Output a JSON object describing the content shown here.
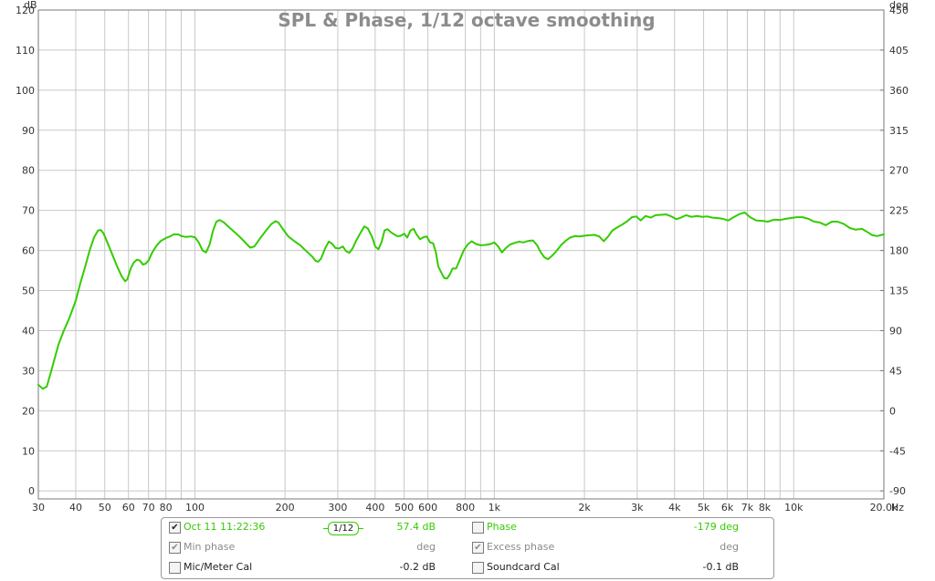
{
  "chart_data": {
    "type": "line",
    "title": "SPL & Phase, 1/12 octave smoothing",
    "left_unit": "dB",
    "right_unit": "deg",
    "x_unit": "Hz",
    "x_scale": "log",
    "xlim": [
      30,
      20000
    ],
    "ylim": [
      -2,
      120
    ],
    "y2lim": [
      -99,
      450
    ],
    "grid": true,
    "x_ticks": [
      {
        "value": 30,
        "label": "30"
      },
      {
        "value": 40,
        "label": "40"
      },
      {
        "value": 50,
        "label": "50"
      },
      {
        "value": 60,
        "label": "60"
      },
      {
        "value": 70,
        "label": "70"
      },
      {
        "value": 80,
        "label": "80"
      },
      {
        "value": 100,
        "label": "100"
      },
      {
        "value": 200,
        "label": "200"
      },
      {
        "value": 300,
        "label": "300"
      },
      {
        "value": 400,
        "label": "400"
      },
      {
        "value": 500,
        "label": "500"
      },
      {
        "value": 600,
        "label": "600"
      },
      {
        "value": 800,
        "label": "800"
      },
      {
        "value": 1000,
        "label": "1k"
      },
      {
        "value": 2000,
        "label": "2k"
      },
      {
        "value": 3000,
        "label": "3k"
      },
      {
        "value": 4000,
        "label": "4k"
      },
      {
        "value": 5000,
        "label": "5k"
      },
      {
        "value": 6000,
        "label": "6k"
      },
      {
        "value": 7000,
        "label": "7k"
      },
      {
        "value": 8000,
        "label": "8k"
      },
      {
        "value": 10000,
        "label": "10k"
      },
      {
        "value": 20000,
        "label": "20.0k"
      }
    ],
    "x_minor": [
      90,
      900,
      9000
    ],
    "y_ticks": [
      0,
      10,
      20,
      30,
      40,
      50,
      60,
      70,
      80,
      90,
      100,
      110,
      120
    ],
    "y2_ticks": [
      -90,
      -45,
      0,
      45,
      90,
      135,
      180,
      225,
      270,
      315,
      360,
      405,
      450
    ],
    "series": [
      {
        "name": "Oct 11 11:22:36",
        "color": "#33cc00",
        "points": [
          [
            30,
            26.5
          ],
          [
            31,
            25.5
          ],
          [
            32,
            26
          ],
          [
            33,
            29.5
          ],
          [
            34,
            33
          ],
          [
            35,
            36.5
          ],
          [
            36.5,
            40
          ],
          [
            38,
            43
          ],
          [
            40,
            47.5
          ],
          [
            41.5,
            52
          ],
          [
            43,
            56
          ],
          [
            44.5,
            60
          ],
          [
            46,
            63.2
          ],
          [
            47.5,
            65
          ],
          [
            48.5,
            65.1
          ],
          [
            49.5,
            64.3
          ],
          [
            51,
            62
          ],
          [
            53,
            59
          ],
          [
            55,
            56
          ],
          [
            57,
            53.5
          ],
          [
            58.5,
            52.3
          ],
          [
            59.5,
            52.8
          ],
          [
            61,
            55.5
          ],
          [
            62.5,
            57
          ],
          [
            64,
            57.7
          ],
          [
            65.5,
            57.5
          ],
          [
            67,
            56.5
          ],
          [
            68.5,
            56.7
          ],
          [
            70,
            57.5
          ],
          [
            72,
            59.5
          ],
          [
            74.5,
            61.2
          ],
          [
            77,
            62.4
          ],
          [
            80,
            63.1
          ],
          [
            82.5,
            63.5
          ],
          [
            85,
            64
          ],
          [
            88,
            64
          ],
          [
            90,
            63.6
          ],
          [
            93,
            63.4
          ],
          [
            97,
            63.5
          ],
          [
            100,
            63.3
          ],
          [
            103,
            62
          ],
          [
            106,
            60
          ],
          [
            109,
            59.5
          ],
          [
            112,
            61.5
          ],
          [
            115,
            65
          ],
          [
            118,
            67.2
          ],
          [
            121,
            67.6
          ],
          [
            125,
            67
          ],
          [
            130,
            65.8
          ],
          [
            136,
            64.5
          ],
          [
            142,
            63.2
          ],
          [
            148,
            61.8
          ],
          [
            153,
            60.7
          ],
          [
            158,
            61
          ],
          [
            165,
            63
          ],
          [
            173,
            65
          ],
          [
            180,
            66.6
          ],
          [
            186,
            67.3
          ],
          [
            190,
            67
          ],
          [
            196,
            65.5
          ],
          [
            205,
            63.5
          ],
          [
            215,
            62.3
          ],
          [
            225,
            61.3
          ],
          [
            232,
            60.3
          ],
          [
            240,
            59.3
          ],
          [
            247,
            58.4
          ],
          [
            253,
            57.4
          ],
          [
            258,
            57.2
          ],
          [
            264,
            58
          ],
          [
            272,
            60.5
          ],
          [
            280,
            62.2
          ],
          [
            287,
            61.7
          ],
          [
            295,
            60.6
          ],
          [
            303,
            60.5
          ],
          [
            312,
            61
          ],
          [
            320,
            59.8
          ],
          [
            328,
            59.4
          ],
          [
            336,
            60.5
          ],
          [
            346,
            62.5
          ],
          [
            358,
            64.5
          ],
          [
            368,
            66
          ],
          [
            378,
            65.5
          ],
          [
            390,
            63.5
          ],
          [
            400,
            61
          ],
          [
            410,
            60.3
          ],
          [
            420,
            62
          ],
          [
            430,
            65
          ],
          [
            440,
            65.3
          ],
          [
            452,
            64.5
          ],
          [
            463,
            64
          ],
          [
            475,
            63.5
          ],
          [
            488,
            63.7
          ],
          [
            500,
            64.2
          ],
          [
            512,
            63.2
          ],
          [
            525,
            65
          ],
          [
            538,
            65.4
          ],
          [
            550,
            64
          ],
          [
            565,
            62.8
          ],
          [
            580,
            63.3
          ],
          [
            595,
            63.5
          ],
          [
            610,
            62
          ],
          [
            625,
            61.8
          ],
          [
            638,
            59.5
          ],
          [
            650,
            56
          ],
          [
            665,
            54.5
          ],
          [
            680,
            53.1
          ],
          [
            695,
            53
          ],
          [
            710,
            54
          ],
          [
            725,
            55.5
          ],
          [
            745,
            55.5
          ],
          [
            765,
            57.5
          ],
          [
            790,
            60
          ],
          [
            815,
            61.5
          ],
          [
            840,
            62.3
          ],
          [
            870,
            61.6
          ],
          [
            900,
            61.3
          ],
          [
            935,
            61.4
          ],
          [
            970,
            61.6
          ],
          [
            1000,
            62
          ],
          [
            1030,
            61
          ],
          [
            1060,
            59.5
          ],
          [
            1090,
            60.5
          ],
          [
            1130,
            61.5
          ],
          [
            1170,
            61.9
          ],
          [
            1210,
            62.2
          ],
          [
            1250,
            62
          ],
          [
            1300,
            62.4
          ],
          [
            1345,
            62.5
          ],
          [
            1390,
            61.3
          ],
          [
            1430,
            59.5
          ],
          [
            1470,
            58.3
          ],
          [
            1510,
            57.8
          ],
          [
            1560,
            58.7
          ],
          [
            1610,
            59.8
          ],
          [
            1670,
            61.3
          ],
          [
            1730,
            62.4
          ],
          [
            1790,
            63.2
          ],
          [
            1860,
            63.6
          ],
          [
            1930,
            63.5
          ],
          [
            2000,
            63.7
          ],
          [
            2080,
            63.8
          ],
          [
            2160,
            63.9
          ],
          [
            2240,
            63.5
          ],
          [
            2320,
            62.3
          ],
          [
            2400,
            63.5
          ],
          [
            2480,
            65
          ],
          [
            2580,
            65.8
          ],
          [
            2680,
            66.5
          ],
          [
            2780,
            67.3
          ],
          [
            2880,
            68.3
          ],
          [
            2980,
            68.5
          ],
          [
            3080,
            67.5
          ],
          [
            3200,
            68.6
          ],
          [
            3330,
            68.2
          ],
          [
            3460,
            68.8
          ],
          [
            3600,
            68.9
          ],
          [
            3750,
            69
          ],
          [
            3900,
            68.5
          ],
          [
            4050,
            67.8
          ],
          [
            4200,
            68.2
          ],
          [
            4370,
            68.8
          ],
          [
            4550,
            68.4
          ],
          [
            4750,
            68.6
          ],
          [
            4950,
            68.4
          ],
          [
            5150,
            68.5
          ],
          [
            5350,
            68.2
          ],
          [
            5550,
            68.1
          ],
          [
            5800,
            67.9
          ],
          [
            6050,
            67.5
          ],
          [
            6300,
            68.3
          ],
          [
            6550,
            69
          ],
          [
            6850,
            69.5
          ],
          [
            7150,
            68.3
          ],
          [
            7500,
            67.5
          ],
          [
            7850,
            67.4
          ],
          [
            8200,
            67.2
          ],
          [
            8600,
            67.7
          ],
          [
            9000,
            67.6
          ],
          [
            9400,
            67.9
          ],
          [
            9800,
            68.1
          ],
          [
            10250,
            68.3
          ],
          [
            10700,
            68.3
          ],
          [
            11200,
            67.9
          ],
          [
            11700,
            67.2
          ],
          [
            12200,
            67
          ],
          [
            12800,
            66.3
          ],
          [
            13400,
            67.2
          ],
          [
            14000,
            67.2
          ],
          [
            14700,
            66.6
          ],
          [
            15400,
            65.6
          ],
          [
            16100,
            65.2
          ],
          [
            16900,
            65.4
          ],
          [
            17700,
            64.5
          ],
          [
            18300,
            63.8
          ],
          [
            19000,
            63.6
          ],
          [
            19500,
            63.8
          ],
          [
            20000,
            64.0
          ]
        ]
      }
    ]
  },
  "legend": {
    "rows": [
      {
        "checked": true,
        "label": "Oct 11 11:22:36",
        "badge": "1/12",
        "value": "57.4 dB",
        "right_checked": false,
        "right_label": "Phase",
        "right_value": "-179 deg"
      },
      {
        "checked": true,
        "label": "Min phase",
        "value": "deg",
        "right_checked": true,
        "right_label": "Excess phase",
        "right_value": "deg"
      },
      {
        "checked": false,
        "label": "Mic/Meter Cal",
        "value": "-0.2 dB",
        "right_checked": false,
        "right_label": "Soundcard Cal",
        "right_value": "-0.1 dB"
      }
    ]
  }
}
